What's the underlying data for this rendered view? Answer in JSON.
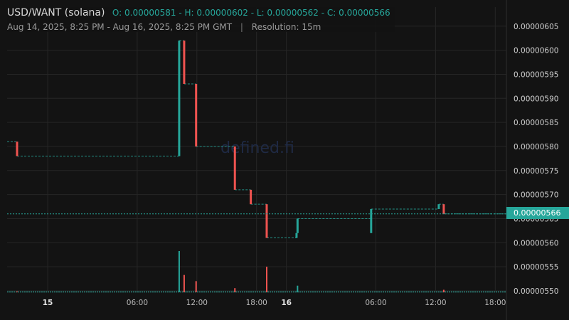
{
  "header": {
    "pair": "USD/WANT (solana)",
    "ohlc": "O: 0.00000581 - H: 0.00000602 - L: 0.00000562 - C: 0.00000566",
    "range": "Aug 14, 2025, 8:25 PM - Aug 16, 2025, 8:25 PM GMT",
    "separator": "|",
    "resolution": "Resolution: 15m"
  },
  "watermark": "defined.fi",
  "last_price_label": "0.00000566",
  "colors": {
    "up": "#26a69a",
    "down": "#ef5350",
    "grid": "#262626",
    "background": "#131313"
  },
  "chart_data": {
    "type": "candlestick",
    "x_axis_ticks": [
      "15",
      "06:00",
      "12:00",
      "18:00",
      "16",
      "06:00",
      "12:00",
      "18:00"
    ],
    "x_hours": [
      3.58,
      12.58,
      18.58,
      24.58,
      27.58,
      36.58,
      42.58,
      48.58
    ],
    "y_axis_ticks": [
      "0.00000605",
      "0.00000600",
      "0.00000595",
      "0.00000590",
      "0.00000585",
      "0.00000580",
      "0.00000575",
      "0.00000570",
      "0.00000565",
      "0.00000560",
      "0.00000555",
      "0.00000550"
    ],
    "ylim": [
      5.5e-06,
      6.06e-06
    ],
    "last_price": 5.66e-06,
    "candles": [
      {
        "t": 0.5,
        "o": 5.81e-06,
        "c": 5.78e-06,
        "dir": "down"
      },
      {
        "t": 16.8,
        "o": 5.78e-06,
        "c": 6.02e-06,
        "dir": "up"
      },
      {
        "t": 17.3,
        "o": 6.02e-06,
        "c": 5.93e-06,
        "dir": "down"
      },
      {
        "t": 18.5,
        "o": 5.93e-06,
        "c": 5.8e-06,
        "dir": "down"
      },
      {
        "t": 22.4,
        "o": 5.8e-06,
        "c": 5.71e-06,
        "dir": "down"
      },
      {
        "t": 24.0,
        "o": 5.71e-06,
        "c": 5.68e-06,
        "dir": "down"
      },
      {
        "t": 25.6,
        "o": 5.68e-06,
        "c": 5.61e-06,
        "dir": "down"
      },
      {
        "t": 28.6,
        "o": 5.61e-06,
        "c": 5.62e-06,
        "dir": "up"
      },
      {
        "t": 28.7,
        "o": 5.62e-06,
        "c": 5.65e-06,
        "dir": "up"
      },
      {
        "t": 36.1,
        "o": 5.62e-06,
        "c": 5.67e-06,
        "dir": "up"
      },
      {
        "t": 42.9,
        "o": 5.67e-06,
        "c": 5.68e-06,
        "dir": "up"
      },
      {
        "t": 43.4,
        "o": 5.68e-06,
        "c": 5.66e-06,
        "dir": "down"
      }
    ],
    "volume": [
      {
        "t": 0.5,
        "v": 0.02,
        "dir": "down"
      },
      {
        "t": 16.8,
        "v": 1.0,
        "dir": "up"
      },
      {
        "t": 17.3,
        "v": 0.42,
        "dir": "down"
      },
      {
        "t": 18.5,
        "v": 0.27,
        "dir": "down"
      },
      {
        "t": 22.4,
        "v": 0.1,
        "dir": "down"
      },
      {
        "t": 25.6,
        "v": 0.62,
        "dir": "down"
      },
      {
        "t": 28.7,
        "v": 0.16,
        "dir": "up"
      },
      {
        "t": 43.4,
        "v": 0.06,
        "dir": "down"
      }
    ]
  }
}
